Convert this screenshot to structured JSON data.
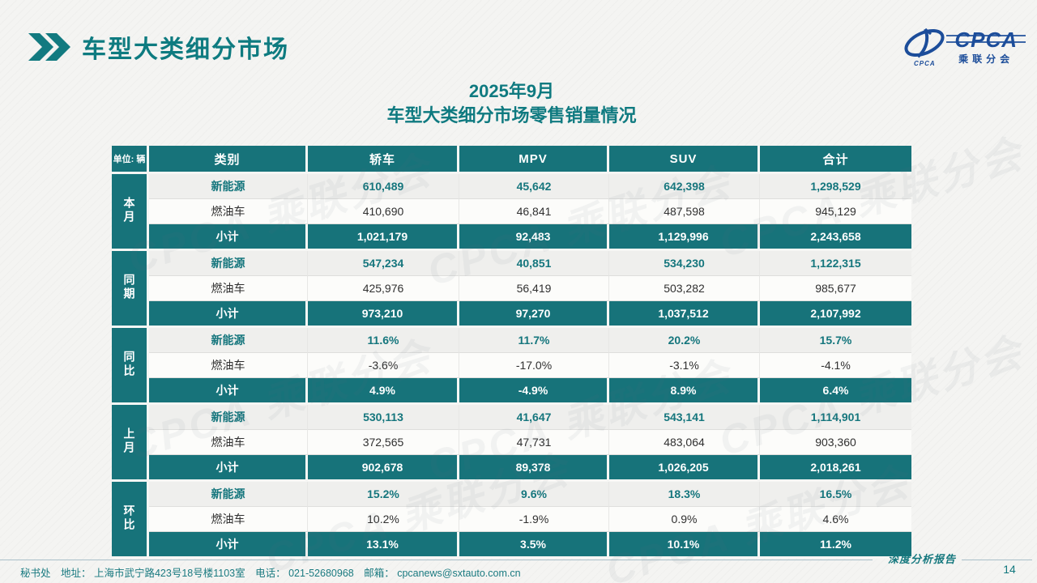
{
  "colors": {
    "teal": "#17737a",
    "title_teal": "#0f7a80",
    "logo_blue": "#1c4d9a",
    "row_light": "#efefed",
    "row_white": "#fcfcfa"
  },
  "header": {
    "title": "车型大类细分市场"
  },
  "logo": {
    "main": "CPCA",
    "sub": "乘联分会",
    "emblem_caption": "CPCA"
  },
  "table_title": {
    "line1": "2025年9月",
    "line2": "车型大类细分市场零售销量情况"
  },
  "table": {
    "unit_label": "单位: 辆",
    "columns": [
      "类别",
      "轿车",
      "MPV",
      "SUV",
      "合计"
    ],
    "groups": [
      {
        "key": "current-month",
        "label": "本月",
        "rows": [
          {
            "key": "nev",
            "category": "新能源",
            "values": [
              "610,489",
              "45,642",
              "642,398",
              "1,298,529"
            ]
          },
          {
            "key": "fuel",
            "category": "燃油车",
            "values": [
              "410,690",
              "46,841",
              "487,598",
              "945,129"
            ]
          },
          {
            "key": "subtotal",
            "category": "小计",
            "values": [
              "1,021,179",
              "92,483",
              "1,129,996",
              "2,243,658"
            ]
          }
        ]
      },
      {
        "key": "same-period",
        "label": "同期",
        "rows": [
          {
            "key": "nev",
            "category": "新能源",
            "values": [
              "547,234",
              "40,851",
              "534,230",
              "1,122,315"
            ]
          },
          {
            "key": "fuel",
            "category": "燃油车",
            "values": [
              "425,976",
              "56,419",
              "503,282",
              "985,677"
            ]
          },
          {
            "key": "subtotal",
            "category": "小计",
            "values": [
              "973,210",
              "97,270",
              "1,037,512",
              "2,107,992"
            ]
          }
        ]
      },
      {
        "key": "yoy",
        "label": "同比",
        "rows": [
          {
            "key": "nev",
            "category": "新能源",
            "values": [
              "11.6%",
              "11.7%",
              "20.2%",
              "15.7%"
            ]
          },
          {
            "key": "fuel",
            "category": "燃油车",
            "values": [
              "-3.6%",
              "-17.0%",
              "-3.1%",
              "-4.1%"
            ]
          },
          {
            "key": "subtotal",
            "category": "小计",
            "values": [
              "4.9%",
              "-4.9%",
              "8.9%",
              "6.4%"
            ]
          }
        ]
      },
      {
        "key": "last-month",
        "label": "上月",
        "rows": [
          {
            "key": "nev",
            "category": "新能源",
            "values": [
              "530,113",
              "41,647",
              "543,141",
              "1,114,901"
            ]
          },
          {
            "key": "fuel",
            "category": "燃油车",
            "values": [
              "372,565",
              "47,731",
              "483,064",
              "903,360"
            ]
          },
          {
            "key": "subtotal",
            "category": "小计",
            "values": [
              "902,678",
              "89,378",
              "1,026,205",
              "2,018,261"
            ]
          }
        ]
      },
      {
        "key": "mom",
        "label": "环比",
        "rows": [
          {
            "key": "nev",
            "category": "新能源",
            "values": [
              "15.2%",
              "9.6%",
              "18.3%",
              "16.5%"
            ]
          },
          {
            "key": "fuel",
            "category": "燃油车",
            "values": [
              "10.2%",
              "-1.9%",
              "0.9%",
              "4.6%"
            ]
          },
          {
            "key": "subtotal",
            "category": "小计",
            "values": [
              "13.1%",
              "3.5%",
              "10.1%",
              "11.2%"
            ]
          }
        ]
      }
    ]
  },
  "watermark_text": "CPCA 乘联分会",
  "footer": {
    "contact": "秘书处　地址： 上海市武宁路423号18号楼1103室　电话： 021-52680968　邮箱： cpcanews@sxtauto.com.cn",
    "report_label": "深度分析报告",
    "page_number": "14"
  }
}
